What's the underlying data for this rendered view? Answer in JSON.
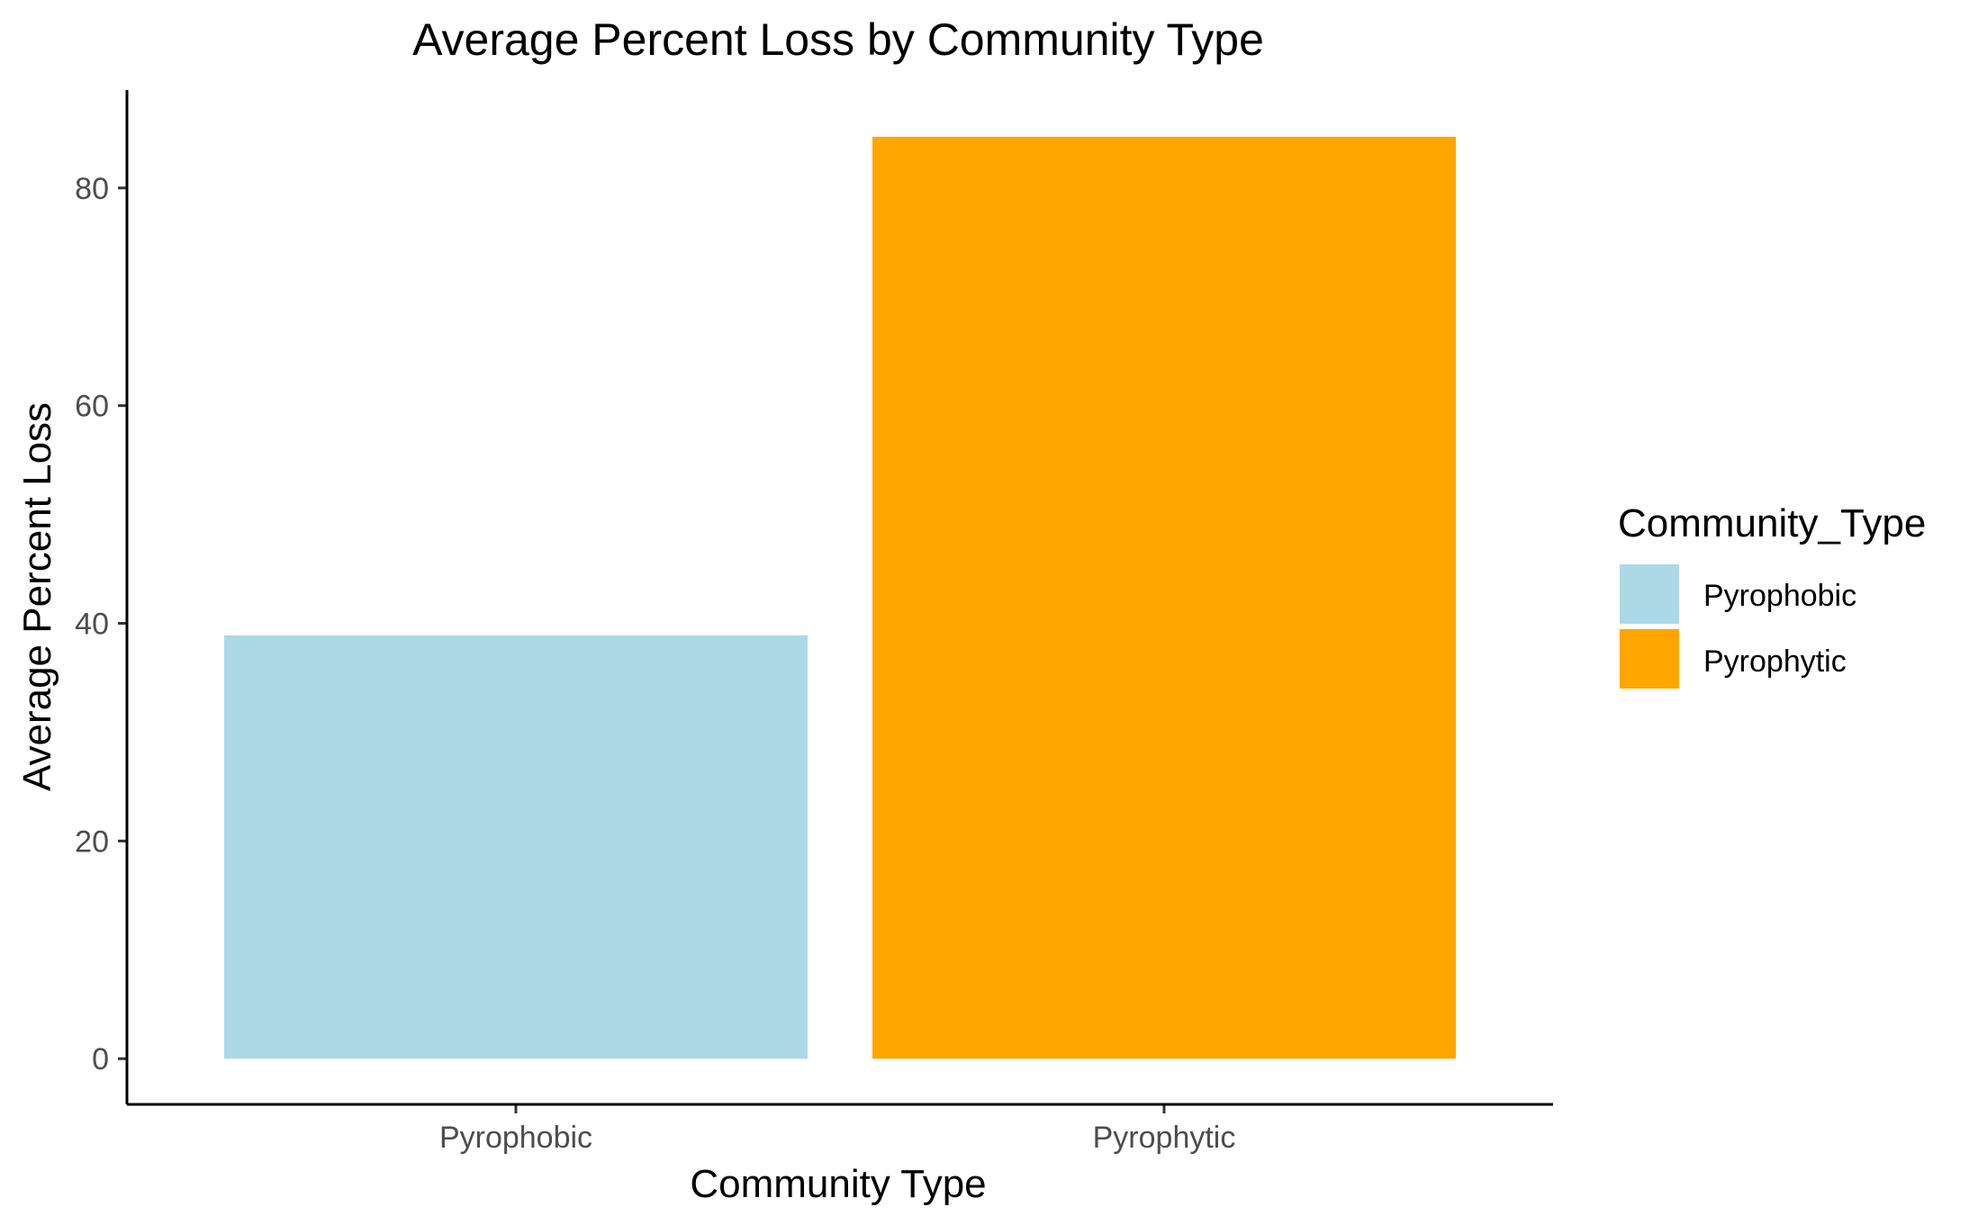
{
  "chart_data": {
    "type": "bar",
    "title": "Average Percent Loss by Community Type",
    "xlabel": "Community Type",
    "ylabel": "Average Percent Loss",
    "categories": [
      "Pyrophobic",
      "Pyrophytic"
    ],
    "values": [
      38.9,
      84.7
    ],
    "colors": [
      "#add8e6",
      "#ffa500"
    ],
    "ylim": [
      -4.2,
      89
    ],
    "yticks": [
      0,
      20,
      40,
      60,
      80
    ],
    "grid": false,
    "legend": {
      "title": "Community_Type",
      "position": "right",
      "entries": [
        "Pyrophobic",
        "Pyrophytic"
      ]
    }
  }
}
